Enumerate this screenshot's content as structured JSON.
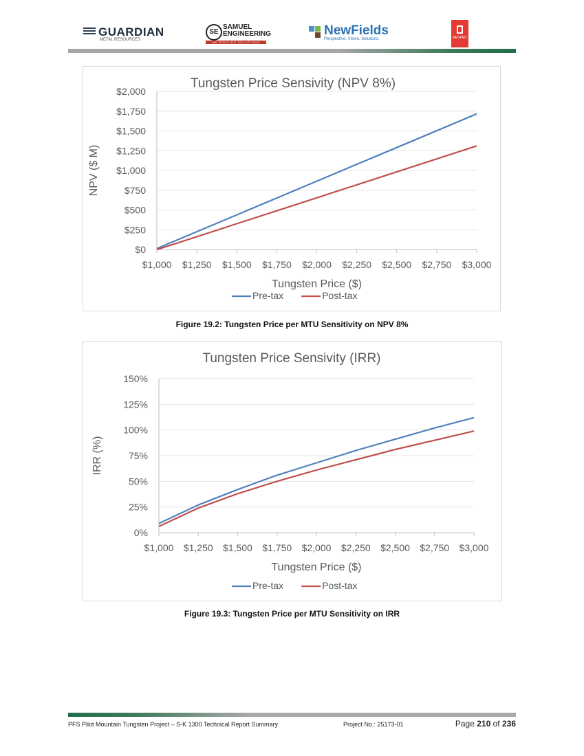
{
  "header": {
    "guardian": {
      "name": "GUARDIAN",
      "sub": "METAL RESOURCES"
    },
    "samuel": {
      "mark": "SE",
      "line1": "SAMUEL",
      "line2": "ENGINEERING",
      "tag": "WE PROVIDE SOLUTIONS"
    },
    "newfields": {
      "name": "NewFields",
      "sub": "Perspective. Vision. Solutions."
    },
    "respec": {
      "name": "RESPEC"
    },
    "colors": {
      "guardian": "#1f2d3d",
      "samuel_red": "#c0392b",
      "newfields_blue": "#2a72b5",
      "respec_red": "#e53a33",
      "rule_green": "#1f6f4a"
    }
  },
  "charts": {
    "npv": {
      "caption": "Figure 19.2: Tungsten Price per MTU Sensitivity on NPV 8%"
    },
    "irr": {
      "caption": "Figure 19.3: Tungsten Price per MTU Sensitivity on IRR"
    }
  },
  "chart_data": [
    {
      "type": "line",
      "title": "Tungsten Price Sensivity (NPV 8%)",
      "xlabel": "Tungsten Price ($)",
      "ylabel": "NPV ($ M)",
      "x": [
        1000,
        1250,
        1500,
        1750,
        2000,
        2250,
        2500,
        2750,
        3000
      ],
      "xticks": [
        "$1,000",
        "$1,250",
        "$1,500",
        "$1,750",
        "$2,000",
        "$2,250",
        "$2,500",
        "$2,750",
        "$3,000"
      ],
      "yticks": [
        "$0",
        "$250",
        "$500",
        "$750",
        "$1,000",
        "$1,250",
        "$1,500",
        "$1,750",
        "$2,000"
      ],
      "xlim": [
        1000,
        3000
      ],
      "ylim": [
        0,
        2000
      ],
      "grid": true,
      "legend": "bottom",
      "series": [
        {
          "name": "Pre-tax",
          "color": "#4f81bd",
          "values": [
            12,
            225,
            438,
            651,
            864,
            1077,
            1290,
            1503,
            1716
          ]
        },
        {
          "name": "Post-tax",
          "color": "#c0504d",
          "values": [
            -2,
            162,
            326,
            490,
            654,
            818,
            982,
            1146,
            1310
          ]
        }
      ]
    },
    {
      "type": "line",
      "title": "Tungsten Price Sensivity (IRR)",
      "xlabel": "Tungsten Price ($)",
      "ylabel": "IRR (%)",
      "x": [
        1000,
        1250,
        1500,
        1750,
        2000,
        2250,
        2500,
        2750,
        3000
      ],
      "xticks": [
        "$1,000",
        "$1,250",
        "$1,500",
        "$1,750",
        "$2,000",
        "$2,250",
        "$2,500",
        "$2,750",
        "$3,000"
      ],
      "yticks": [
        "0%",
        "25%",
        "50%",
        "75%",
        "100%",
        "125%",
        "150%"
      ],
      "xlim": [
        1000,
        3000
      ],
      "ylim": [
        0,
        150
      ],
      "grid": true,
      "legend": "bottom",
      "series": [
        {
          "name": "Pre-tax",
          "color": "#4f81bd",
          "values": [
            9,
            27,
            42,
            56,
            68,
            80,
            91,
            102,
            112
          ]
        },
        {
          "name": "Post-tax",
          "color": "#c0504d",
          "values": [
            6,
            24,
            38,
            50,
            61,
            71,
            81,
            90,
            99
          ]
        }
      ]
    }
  ],
  "footer": {
    "left": "PFS Pilot Mountain Tungsten Project – S-K 1300 Technical Report Summary",
    "project": "Project No.: 25173-01",
    "page_prefix": "Page",
    "page": "210",
    "of": "of",
    "total": "236"
  }
}
